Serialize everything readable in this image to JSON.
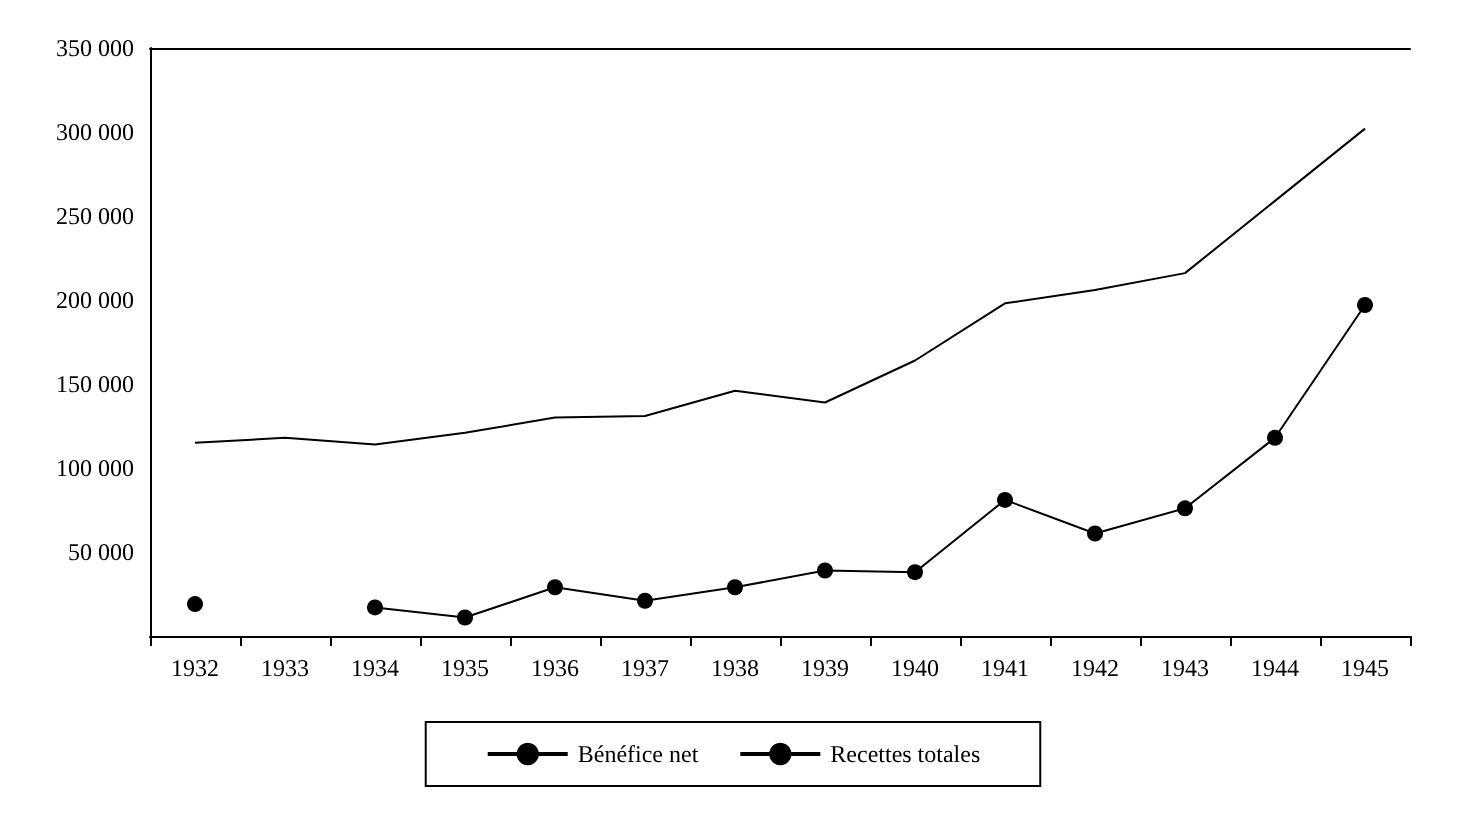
{
  "chart_data": {
    "type": "line",
    "categories": [
      "1932",
      "1933",
      "1934",
      "1935",
      "1936",
      "1937",
      "1938",
      "1939",
      "1940",
      "1941",
      "1942",
      "1943",
      "1944",
      "1945"
    ],
    "series": [
      {
        "name": "Bénéfice net",
        "color": "#000000",
        "marker": "circle",
        "values": [
          19000,
          null,
          17000,
          11000,
          29000,
          21000,
          29000,
          39000,
          38000,
          81000,
          61000,
          76000,
          118000,
          197000
        ]
      },
      {
        "name": "Recettes totales",
        "color": "#000000",
        "marker": "none",
        "values": [
          115000,
          118000,
          114000,
          121000,
          130000,
          131000,
          146000,
          139000,
          164000,
          198000,
          206000,
          216000,
          259000,
          302000
        ]
      }
    ],
    "ylim": [
      0,
      350000
    ],
    "yticks": [
      {
        "value": 50000,
        "label": "50 000"
      },
      {
        "value": 100000,
        "label": "100 000"
      },
      {
        "value": 150000,
        "label": "150 000"
      },
      {
        "value": 200000,
        "label": "200 000"
      },
      {
        "value": 250000,
        "label": "250 000"
      },
      {
        "value": 300000,
        "label": "300 000"
      },
      {
        "value": 350000,
        "label": "350 000"
      }
    ],
    "grid": false,
    "legend": "bottom"
  }
}
